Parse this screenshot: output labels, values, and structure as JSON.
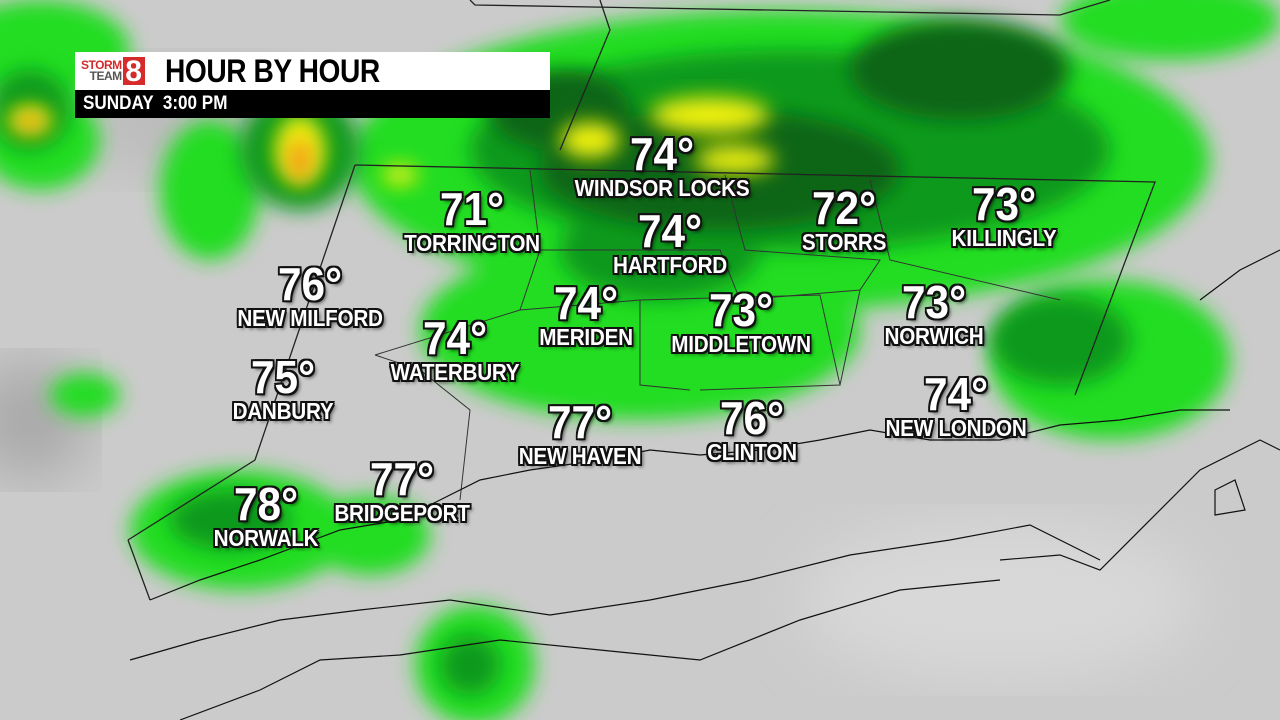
{
  "header": {
    "logo": {
      "line1": "STORM",
      "line2": "TEAM",
      "number": "8"
    },
    "title": "HOUR BY HOUR",
    "subtitle": "SUNDAY  3:00 PM"
  },
  "colors": {
    "light_rain": "#22dd22",
    "moderate_rain": "#0a8a1a",
    "heavy_rain": "#075e10",
    "yellow": "#f2f20a",
    "orange": "#f29a1a",
    "land": "#c9c9c9"
  },
  "cities": [
    {
      "name": "WINDSOR LOCKS",
      "temp": "74°"
    },
    {
      "name": "TORRINGTON",
      "temp": "71°"
    },
    {
      "name": "HARTFORD",
      "temp": "74°"
    },
    {
      "name": "STORRS",
      "temp": "72°"
    },
    {
      "name": "KILLINGLY",
      "temp": "73°"
    },
    {
      "name": "NEW MILFORD",
      "temp": "76°"
    },
    {
      "name": "MERIDEN",
      "temp": "74°"
    },
    {
      "name": "MIDDLETOWN",
      "temp": "73°"
    },
    {
      "name": "NORWICH",
      "temp": "73°"
    },
    {
      "name": "WATERBURY",
      "temp": "74°"
    },
    {
      "name": "DANBURY",
      "temp": "75°"
    },
    {
      "name": "NEW LONDON",
      "temp": "74°"
    },
    {
      "name": "NEW HAVEN",
      "temp": "77°"
    },
    {
      "name": "CLINTON",
      "temp": "76°"
    },
    {
      "name": "BRIDGEPORT",
      "temp": "77°"
    },
    {
      "name": "NORWALK",
      "temp": "78°"
    }
  ]
}
